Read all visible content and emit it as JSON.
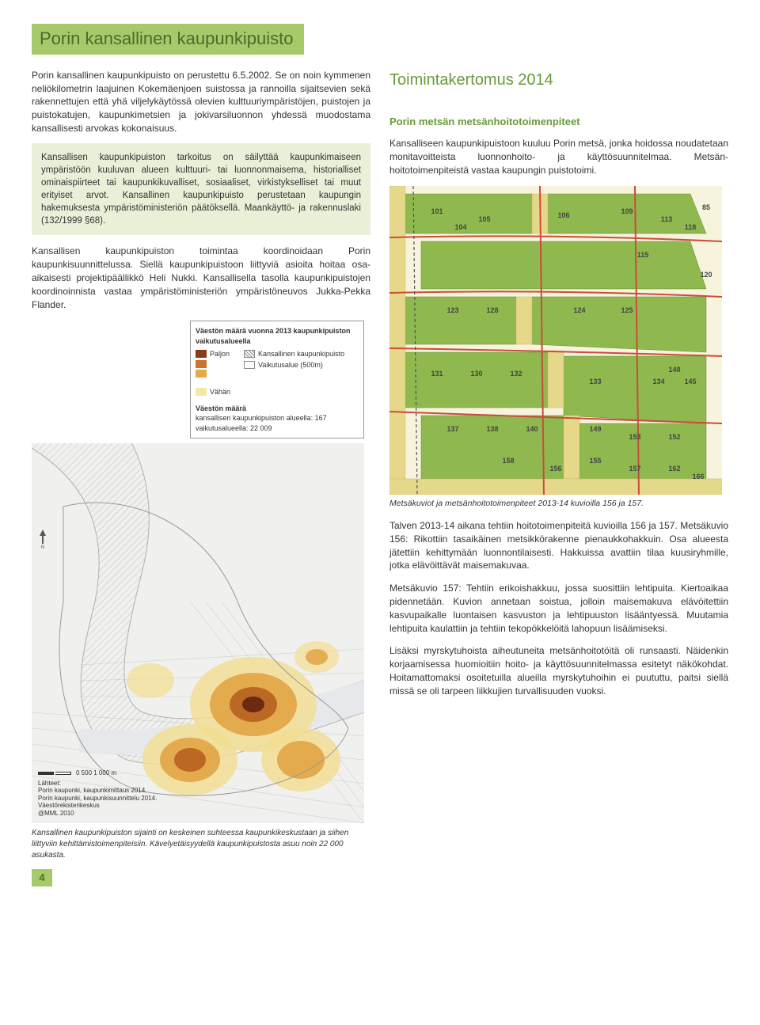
{
  "title": "Porin kansallinen kaupunkipuisto",
  "intro": "Porin kansallinen kaupunkipuisto on perustettu 6.5.2002. Se on noin kymmenen neliökilometrin laajuinen Kokemäenjoen suistossa ja rannoilla sijaitsevien sekä rakennettujen että yhä viljelykäytössä olevien kulttuuriympäristöjen, puistojen ja puistokatujen, kaupunkimetsien ja jokivarsiluonnon yhdessä muodostama kansallisesti arvokas kokonaisuus.",
  "infobox": "Kansallisen kaupunkipuiston tarkoitus on säilyttää kaupunkimaiseen ympäristöön kuuluvan alueen kulttuuri- tai luonnonmaisema, historialliset ominaispiirteet tai kaupunkikuvalliset, sosiaaliset, virkistykselliset tai muut erityiset arvot. Kansallinen kaupunkipuisto perustetaan kaupungin hakemuksesta ympäristöministeriön päätöksellä. Maankäyttö- ja rakennuslaki (132/1999 §68).",
  "coord_para": "Kansallisen kaupunkipuiston toimintaa koordinoidaan Porin kaupunkisuunnittelussa. Siellä kaupunkipuistoon liittyviä asioita hoitaa osa-aikaisesti projektipäällikkö Heli Nukki. Kansallisella tasolla kaupunkipuistojen koordinoinnista vastaa ympäristöministeriön ympäristöneuvos Jukka-Pekka Flander.",
  "right_h2": "Toimintakertomus 2014",
  "right_h3": "Porin metsän metsänhoitotoimenpiteet",
  "right_intro": "Kansalliseen kaupunkipuistoon kuuluu Porin metsä, jonka hoidossa noudatetaan monitavoitteista luonnonhoito- ja käyttösuunnitelmaa. Metsän-hoitotoimenpiteistä vastaa kaupungin puistotoimi.",
  "map2_caption": "Metsäkuviot ja metsänhoitotoimenpiteet 2013-14 kuvioilla 156 ja 157.",
  "para_talvi": "Talven 2013-14 aikana tehtiin hoitotoimenpiteitä kuvioilla 156 ja 157. Metsäkuvio 156: Rikottiin tasaikäinen metsikkörakenne pienaukkohakkuin. Osa alueesta jätettiin kehittymään luonnontilaisesti. Hakkuissa avattiin tilaa kuusiryhmille, jotka elävöittävät maisemakuvaa.",
  "para_157": "Metsäkuvio 157: Tehtiin erikoishakkuu, jossa suosittiin lehtipuita. Kiertoaikaa pidennetään. Kuvion annetaan soistua, jolloin maisemakuva elävöitettiin kasvupaikalle luontaisen kasvuston ja lehtipuuston lisääntyessä. Muutamia lehtipuita kaulattiin ja tehtiin tekopökkelöitä lahopuun lisäämiseksi.",
  "para_lisaksi": "Lisäksi myrskytuhoista aiheutuneita metsänhoitotöitä oli runsaasti. Näidenkin korjaamisessa huomioitiin hoito- ja käyttösuunnitelmassa esitetyt näkökohdat. Hoitamattomaksi osoitetuilla alueilla myrskytuhoihin ei puututtu, paitsi siellä missä se oli tarpeen liikkujien turvallisuuden vuoksi.",
  "map1_caption": "Kansallinen kaupunkipuiston sijainti on keskeinen suhteessa kaupunkikeskustaan ja siihen liittyviin kehittämistoimenpiteisiin. Kävelyetäisyydellä kaupunkipuistosta asuu noin 22 000 asukasta.",
  "legend": {
    "title": "Väestön määrä vuonna 2013 kaupunkipuiston vaikutusalueella",
    "paljon": "Paljon",
    "kkp": "Kansallinen kaupunkipuisto",
    "vaik": "Vaikutusalue (500m)",
    "vahan": "Vähän",
    "stats_title": "Väestön määrä",
    "stat1": "kansallisen kaupunkipuiston alueella: 167",
    "stat2": "vaikutusalueella: 22 009",
    "colors": {
      "paljon": "#8b3a1e",
      "mid1": "#c9752f",
      "mid2": "#e8a94c",
      "vahan": "#f5e7a8"
    }
  },
  "map1": {
    "background": "#f0f0ee",
    "river_color": "#d8dbe0",
    "heat_colors": [
      "#6b2a10",
      "#b5601f",
      "#e0a040",
      "#f3dd90"
    ],
    "scale_label": "0    500    1 000 m",
    "sources_title": "Lähteet:",
    "src1": "Porin kaupunki, kaupunkimittaus 2014.",
    "src2": "Porin kaupunki, kaupunkisuunnittelu 2014.",
    "src3": "Väestörekisterikeskus",
    "src4": "@MML 2010"
  },
  "map2": {
    "forest_color": "#8fb84e",
    "open_color": "#e6d88a",
    "bg_color": "#f7f3dc",
    "road_color": "#c94d3a",
    "kuvio_labels": [
      "101",
      "104",
      "105",
      "106",
      "109",
      "113",
      "118",
      "115",
      "120",
      "123",
      "128",
      "124",
      "125",
      "131",
      "130",
      "132",
      "133",
      "134",
      "137",
      "138",
      "148",
      "145",
      "140",
      "149",
      "153",
      "158",
      "152",
      "155",
      "157",
      "156",
      "162",
      "166",
      "85"
    ]
  },
  "page_number": "4"
}
